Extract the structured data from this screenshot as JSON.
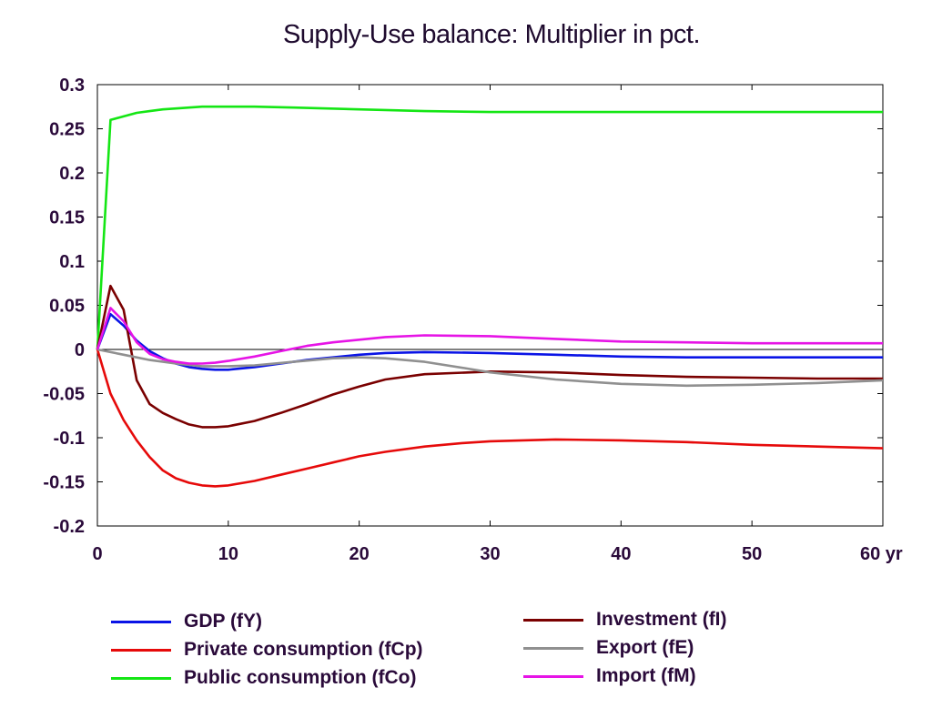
{
  "chart_data": {
    "type": "line",
    "title": "Supply-Use balance: Multiplier in pct.",
    "xlabel": "",
    "ylabel": "",
    "x_tick_labels": [
      "0",
      "10",
      "20",
      "30",
      "40",
      "50",
      "60 yr"
    ],
    "x_ticks": [
      0,
      10,
      20,
      30,
      40,
      50,
      60
    ],
    "y_tick_labels": [
      "0.3",
      "0.25",
      "0.2",
      "0.15",
      "0.1",
      "0.05",
      "0",
      "-0.05",
      "-0.1",
      "-0.15",
      "-0.2"
    ],
    "y_ticks": [
      0.3,
      0.25,
      0.2,
      0.15,
      0.1,
      0.05,
      0,
      -0.05,
      -0.1,
      -0.15,
      -0.2
    ],
    "xlim": [
      0,
      60
    ],
    "ylim": [
      -0.2,
      0.3
    ],
    "grid": false,
    "legend_position": "bottom",
    "series": [
      {
        "name": "GDP (fY)",
        "color": "#0a14e6",
        "x": [
          0,
          1,
          2,
          3,
          4,
          5,
          6,
          7,
          8,
          9,
          10,
          12,
          14,
          16,
          18,
          20,
          22,
          25,
          30,
          35,
          40,
          45,
          50,
          55,
          60
        ],
        "y": [
          0,
          0.04,
          0.027,
          0.01,
          -0.002,
          -0.01,
          -0.016,
          -0.02,
          -0.022,
          -0.023,
          -0.023,
          -0.02,
          -0.016,
          -0.012,
          -0.009,
          -0.006,
          -0.004,
          -0.003,
          -0.004,
          -0.006,
          -0.008,
          -0.009,
          -0.009,
          -0.009,
          -0.009
        ]
      },
      {
        "name": "Private consumption (fCp)",
        "color": "#e60a0a",
        "x": [
          0,
          1,
          2,
          3,
          4,
          5,
          6,
          7,
          8,
          9,
          10,
          12,
          14,
          16,
          18,
          20,
          22,
          25,
          28,
          30,
          35,
          40,
          45,
          50,
          55,
          60
        ],
        "y": [
          0,
          -0.05,
          -0.08,
          -0.103,
          -0.122,
          -0.137,
          -0.146,
          -0.151,
          -0.154,
          -0.155,
          -0.154,
          -0.149,
          -0.142,
          -0.135,
          -0.128,
          -0.121,
          -0.116,
          -0.11,
          -0.106,
          -0.104,
          -0.102,
          -0.103,
          -0.105,
          -0.108,
          -0.11,
          -0.112
        ]
      },
      {
        "name": "Public consumption (fCo)",
        "color": "#14e614",
        "x": [
          0,
          1,
          2,
          3,
          4,
          5,
          6,
          7,
          8,
          10,
          12,
          15,
          20,
          25,
          30,
          35,
          40,
          45,
          50,
          55,
          60
        ],
        "y": [
          0,
          0.26,
          0.264,
          0.268,
          0.27,
          0.272,
          0.273,
          0.274,
          0.275,
          0.275,
          0.275,
          0.274,
          0.272,
          0.27,
          0.269,
          0.269,
          0.269,
          0.269,
          0.269,
          0.269,
          0.269
        ]
      },
      {
        "name": "Investment (fI)",
        "color": "#7a0000",
        "x": [
          0,
          1,
          2,
          3,
          4,
          5,
          6,
          7,
          8,
          9,
          10,
          12,
          14,
          16,
          18,
          20,
          22,
          25,
          30,
          35,
          40,
          45,
          50,
          55,
          60
        ],
        "y": [
          0,
          0.072,
          0.045,
          -0.035,
          -0.062,
          -0.072,
          -0.079,
          -0.085,
          -0.088,
          -0.088,
          -0.087,
          -0.081,
          -0.072,
          -0.062,
          -0.051,
          -0.042,
          -0.034,
          -0.028,
          -0.025,
          -0.026,
          -0.029,
          -0.031,
          -0.032,
          -0.033,
          -0.033
        ]
      },
      {
        "name": "Export (fE)",
        "color": "#909090",
        "x": [
          0,
          2,
          4,
          6,
          8,
          10,
          12,
          15,
          18,
          20,
          22,
          25,
          28,
          30,
          35,
          40,
          45,
          50,
          55,
          60
        ],
        "y": [
          0,
          -0.006,
          -0.012,
          -0.016,
          -0.019,
          -0.019,
          -0.018,
          -0.014,
          -0.01,
          -0.009,
          -0.01,
          -0.014,
          -0.021,
          -0.026,
          -0.034,
          -0.039,
          -0.041,
          -0.04,
          -0.038,
          -0.035
        ]
      },
      {
        "name": "Import (fM)",
        "color": "#e614e6",
        "x": [
          0,
          1,
          2,
          3,
          4,
          5,
          6,
          7,
          8,
          9,
          10,
          12,
          14,
          16,
          18,
          20,
          22,
          25,
          30,
          35,
          40,
          45,
          50,
          55,
          60
        ],
        "y": [
          0,
          0.047,
          0.032,
          0.008,
          -0.005,
          -0.011,
          -0.014,
          -0.016,
          -0.016,
          -0.015,
          -0.013,
          -0.008,
          -0.002,
          0.004,
          0.008,
          0.011,
          0.014,
          0.016,
          0.015,
          0.012,
          0.009,
          0.008,
          0.007,
          0.007,
          0.007
        ]
      }
    ]
  }
}
